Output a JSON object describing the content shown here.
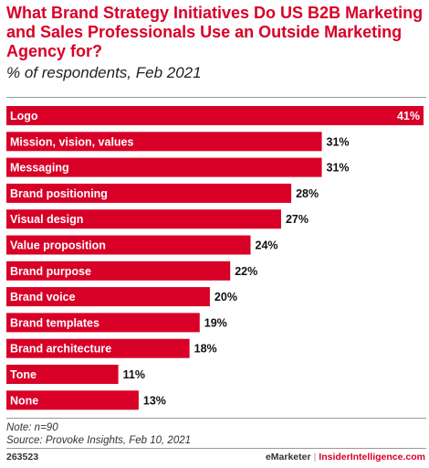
{
  "title": "What Brand Strategy Initiatives Do US B2B Marketing and Sales Professionals Use an Outside Marketing Agency for?",
  "subtitle": "% of respondents, Feb 2021",
  "notes": {
    "note": "Note: n=90",
    "source": "Source: Provoke Insights, Feb 10, 2021"
  },
  "footer": {
    "id": "263523",
    "brand": "eMarketer",
    "separator": "|",
    "site": "InsiderIntelligence.com"
  },
  "colors": {
    "bar": "#d80027",
    "accent": "#d80027"
  },
  "chart_data": {
    "type": "bar",
    "orientation": "horizontal",
    "categories": [
      "Logo",
      "Mission, vision, values",
      "Messaging",
      "Brand positioning",
      "Visual design",
      "Value proposition",
      "Brand purpose",
      "Brand voice",
      "Brand templates",
      "Brand architecture",
      "Tone",
      "None"
    ],
    "values": [
      41,
      31,
      31,
      28,
      27,
      24,
      22,
      20,
      19,
      18,
      11,
      13
    ],
    "value_labels": [
      "41%",
      "31%",
      "31%",
      "28%",
      "27%",
      "24%",
      "22%",
      "20%",
      "19%",
      "18%",
      "11%",
      "13%"
    ],
    "xlim": [
      0,
      41
    ],
    "grid": false,
    "legend": "none"
  }
}
